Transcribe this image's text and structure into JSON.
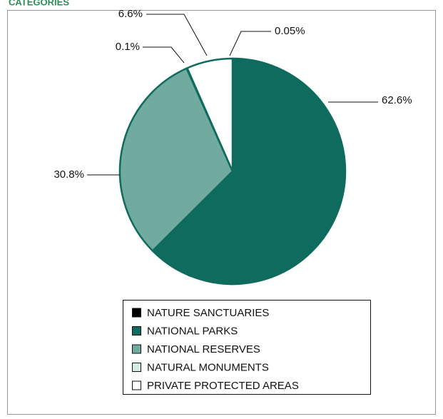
{
  "chart_data": {
    "type": "pie",
    "title": "CATEGORIES",
    "categories": [
      "NATURE SANCTUARIES",
      "NATIONAL PARKS",
      "NATIONAL RESERVES",
      "NATURAL MONUMENTS",
      "PRIVATE PROTECTED AREAS"
    ],
    "values": [
      0.05,
      62.6,
      30.8,
      0.1,
      6.6
    ],
    "value_labels": [
      "0.05%",
      "62.6%",
      "30.8%",
      "0.1%",
      "6.6%"
    ],
    "colors": [
      "#000000",
      "#0e6b5e",
      "#71aa9e",
      "#d6ebe3",
      "#ffffff"
    ]
  }
}
